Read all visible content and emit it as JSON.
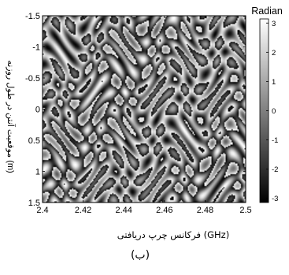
{
  "chart_data": {
    "type": "heatmap",
    "title": "",
    "xlabel": "فرکانس چرپ دریافتی (GHz)",
    "ylabel": "موقعیت آنتن در طول روزنه (m)",
    "x_ticks": [
      "2.4",
      "2.42",
      "2.44",
      "2.46",
      "2.48",
      "2.5"
    ],
    "x_tick_values": [
      2.4,
      2.42,
      2.44,
      2.46,
      2.48,
      2.5
    ],
    "y_ticks": [
      "-1.5",
      "-1",
      "-0.5",
      "0",
      "0.5",
      "1",
      "1.5"
    ],
    "y_tick_values": [
      -1.5,
      -1,
      -0.5,
      0,
      0.5,
      1,
      1.5
    ],
    "xlim": [
      2.4,
      2.5
    ],
    "ylim": [
      -1.5,
      1.5
    ],
    "y_reversed": true,
    "colormap": "gray",
    "colorbar": {
      "label": "Radian",
      "range": [
        -3.1416,
        3.1416
      ],
      "ticks": [
        "3",
        "2",
        "1",
        "0",
        "-1",
        "-2",
        "-3"
      ],
      "tick_values": [
        3,
        2,
        1,
        0,
        -1,
        -2,
        -3
      ]
    },
    "pattern": "wrapped phase of a spatially varying sinusoidal interference field (vertical stripe / oval fringes, about 14 fringe columns across the band)",
    "grid": false
  },
  "caption": "(ب)",
  "colors": {
    "axis": "#000000",
    "background": "#ffffff"
  }
}
